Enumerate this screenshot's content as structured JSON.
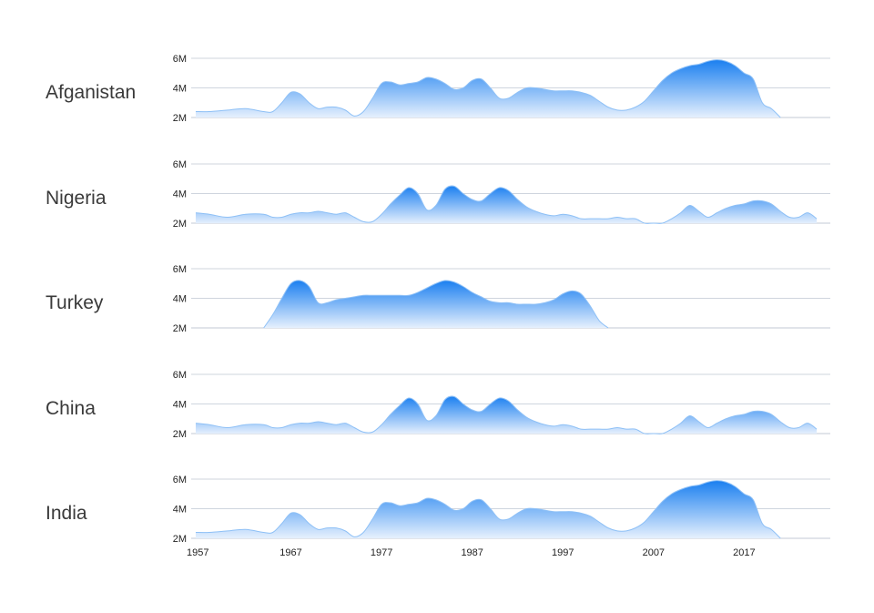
{
  "chart_data": {
    "type": "area",
    "title": "",
    "xlabel": "",
    "ylabel": "",
    "x": [
      1956.5,
      1958,
      1960,
      1962,
      1964,
      1965,
      1966,
      1967,
      1968,
      1969,
      1970,
      1971,
      1972,
      1973,
      1974,
      1975,
      1976,
      1977,
      1978,
      1979,
      1980,
      1981,
      1982,
      1983,
      1984,
      1985,
      1986,
      1987,
      1988,
      1989,
      1990,
      1991,
      1992,
      1993,
      1994,
      1995,
      1996,
      1997,
      1998,
      1999,
      2000,
      2001,
      2002,
      2003,
      2004,
      2005,
      2006,
      2007,
      2008,
      2009,
      2010,
      2011,
      2012,
      2013,
      2014,
      2015,
      2016,
      2017,
      2018,
      2019,
      2020,
      2021,
      2022,
      2023,
      2024,
      2025,
      2026
    ],
    "xlim": [
      1956,
      2026.5
    ],
    "ylim": [
      2,
      6
    ],
    "x_ticks": [
      1957,
      1967,
      1977,
      1987,
      1997,
      2007,
      2017
    ],
    "x_tick_labels": [
      "1957",
      "1967",
      "1977",
      "1987",
      "1997",
      "2007",
      "2017"
    ],
    "y_ticks": [
      2,
      4,
      6
    ],
    "y_tick_labels": [
      "2M",
      "4M",
      "6M"
    ],
    "grid": true,
    "colors": {
      "top": "#1a7ff0",
      "bottom": "#e6f0fd",
      "edge": "#8ec0f6"
    },
    "series": [
      {
        "name": "Afganistan",
        "values": [
          2.4,
          2.4,
          2.5,
          2.6,
          2.4,
          2.4,
          3.0,
          3.7,
          3.6,
          3.0,
          2.6,
          2.7,
          2.7,
          2.5,
          2.1,
          2.4,
          3.3,
          4.3,
          4.4,
          4.2,
          4.3,
          4.4,
          4.7,
          4.6,
          4.3,
          3.9,
          4.0,
          4.5,
          4.6,
          4.0,
          3.3,
          3.3,
          3.7,
          4.0,
          4.0,
          3.9,
          3.8,
          3.8,
          3.8,
          3.7,
          3.5,
          3.1,
          2.7,
          2.5,
          2.5,
          2.7,
          3.1,
          3.8,
          4.5,
          5.0,
          5.3,
          5.5,
          5.6,
          5.8,
          5.9,
          5.8,
          5.5,
          5.0,
          4.6,
          3.0,
          2.6,
          2.0,
          null,
          null,
          null,
          null,
          null
        ]
      },
      {
        "name": "Nigeria",
        "values": [
          2.7,
          2.6,
          2.4,
          2.6,
          2.6,
          2.4,
          2.4,
          2.6,
          2.7,
          2.7,
          2.8,
          2.7,
          2.6,
          2.7,
          2.4,
          2.1,
          2.1,
          2.6,
          3.3,
          3.9,
          4.4,
          4.0,
          2.9,
          3.2,
          4.3,
          4.5,
          4.0,
          3.6,
          3.5,
          4.0,
          4.4,
          4.2,
          3.6,
          3.1,
          2.8,
          2.6,
          2.5,
          2.6,
          2.5,
          2.3,
          2.3,
          2.3,
          2.3,
          2.4,
          2.3,
          2.3,
          2.0,
          2.0,
          2.0,
          2.3,
          2.7,
          3.2,
          2.8,
          2.4,
          2.7,
          3.0,
          3.2,
          3.3,
          3.5,
          3.5,
          3.3,
          2.8,
          2.4,
          2.4,
          2.7,
          2.3,
          null
        ]
      },
      {
        "name": "Turkey",
        "values": [
          null,
          null,
          null,
          null,
          2.0,
          2.9,
          4.0,
          5.0,
          5.2,
          4.8,
          3.7,
          3.7,
          3.9,
          4.0,
          4.1,
          4.2,
          4.2,
          4.2,
          4.2,
          4.2,
          4.2,
          4.4,
          4.7,
          5.0,
          5.2,
          5.1,
          4.8,
          4.4,
          4.1,
          3.8,
          3.7,
          3.7,
          3.6,
          3.6,
          3.6,
          3.7,
          3.9,
          4.3,
          4.5,
          4.3,
          3.5,
          2.5,
          2.0,
          null,
          null,
          null,
          null,
          null,
          null,
          null,
          null,
          null,
          null,
          null,
          null,
          null,
          null,
          null,
          null,
          null,
          null,
          null,
          null,
          null,
          null,
          null,
          null
        ]
      },
      {
        "name": "China",
        "values": [
          2.7,
          2.6,
          2.4,
          2.6,
          2.6,
          2.4,
          2.4,
          2.6,
          2.7,
          2.7,
          2.8,
          2.7,
          2.6,
          2.7,
          2.4,
          2.1,
          2.1,
          2.6,
          3.3,
          3.9,
          4.4,
          4.0,
          2.9,
          3.2,
          4.3,
          4.5,
          4.0,
          3.6,
          3.5,
          4.0,
          4.4,
          4.2,
          3.6,
          3.1,
          2.8,
          2.6,
          2.5,
          2.6,
          2.5,
          2.3,
          2.3,
          2.3,
          2.3,
          2.4,
          2.3,
          2.3,
          2.0,
          2.0,
          2.0,
          2.3,
          2.7,
          3.2,
          2.8,
          2.4,
          2.7,
          3.0,
          3.2,
          3.3,
          3.5,
          3.5,
          3.3,
          2.8,
          2.4,
          2.4,
          2.7,
          2.3,
          null
        ]
      },
      {
        "name": "India",
        "values": [
          2.4,
          2.4,
          2.5,
          2.6,
          2.4,
          2.4,
          3.0,
          3.7,
          3.6,
          3.0,
          2.6,
          2.7,
          2.7,
          2.5,
          2.1,
          2.4,
          3.3,
          4.3,
          4.4,
          4.2,
          4.3,
          4.4,
          4.7,
          4.6,
          4.3,
          3.9,
          4.0,
          4.5,
          4.6,
          4.0,
          3.3,
          3.3,
          3.7,
          4.0,
          4.0,
          3.9,
          3.8,
          3.8,
          3.8,
          3.7,
          3.5,
          3.1,
          2.7,
          2.5,
          2.5,
          2.7,
          3.1,
          3.8,
          4.5,
          5.0,
          5.3,
          5.5,
          5.6,
          5.8,
          5.9,
          5.8,
          5.5,
          5.0,
          4.6,
          3.0,
          2.6,
          2.0,
          null,
          null,
          null,
          null,
          null
        ]
      }
    ]
  }
}
